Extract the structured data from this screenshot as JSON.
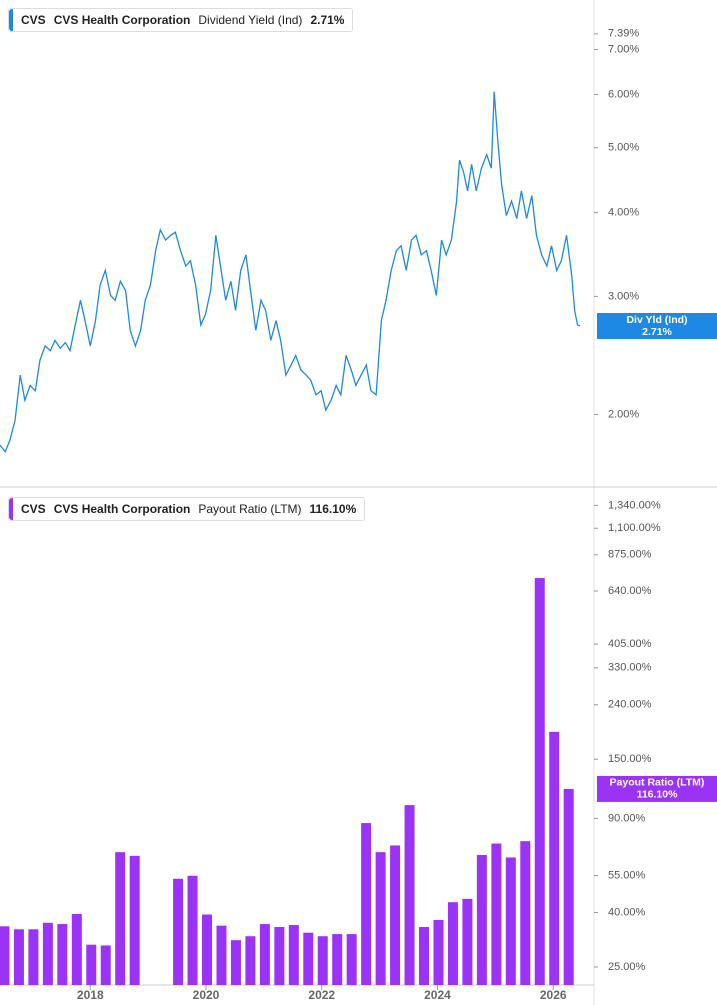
{
  "chart_data": [
    {
      "type": "line",
      "symbol": "CVS",
      "company": "CVS Health Corporation",
      "last_value_label": "2.71%",
      "badge_label": "Div Yld (Ind)",
      "yscale": "log",
      "grid": false,
      "xlim": [
        2016.44,
        2026.67
      ],
      "ylim": [
        1.57,
        8.3
      ],
      "yticks": [
        {
          "value": 2,
          "label": "2.00%"
        },
        {
          "value": 3,
          "label": "3.00%"
        },
        {
          "value": 4,
          "label": "4.00%"
        },
        {
          "value": 5,
          "label": "5.00%"
        },
        {
          "value": 6,
          "label": "6.00%"
        },
        {
          "value": 7,
          "label": "7.00%"
        },
        {
          "value": 7.39,
          "label": "7.39%"
        }
      ],
      "x": [
        2016.44,
        2016.53,
        2016.61,
        2016.7,
        2016.79,
        2016.87,
        2016.96,
        2017.05,
        2017.13,
        2017.22,
        2017.31,
        2017.39,
        2017.48,
        2017.57,
        2017.65,
        2017.74,
        2017.83,
        2017.91,
        2018.0,
        2018.09,
        2018.17,
        2018.26,
        2018.35,
        2018.43,
        2018.52,
        2018.61,
        2018.69,
        2018.78,
        2018.87,
        2018.95,
        2019.04,
        2019.13,
        2019.21,
        2019.3,
        2019.39,
        2019.47,
        2019.56,
        2019.65,
        2019.73,
        2019.82,
        2019.91,
        2019.99,
        2020.08,
        2020.17,
        2020.25,
        2020.34,
        2020.43,
        2020.51,
        2020.6,
        2020.69,
        2020.77,
        2020.86,
        2020.95,
        2021.03,
        2021.12,
        2021.21,
        2021.29,
        2021.38,
        2021.47,
        2021.55,
        2021.64,
        2021.73,
        2021.81,
        2021.9,
        2021.99,
        2022.07,
        2022.16,
        2022.25,
        2022.33,
        2022.42,
        2022.51,
        2022.59,
        2022.68,
        2022.77,
        2022.85,
        2022.94,
        2023.03,
        2023.11,
        2023.2,
        2023.29,
        2023.37,
        2023.46,
        2023.55,
        2023.63,
        2023.72,
        2023.81,
        2023.89,
        2023.98,
        2024.07,
        2024.15,
        2024.24,
        2024.33,
        2024.38,
        2024.45,
        2024.52,
        2024.59,
        2024.67,
        2024.76,
        2024.85,
        2024.93,
        2024.98,
        2025.04,
        2025.11,
        2025.19,
        2025.28,
        2025.37,
        2025.45,
        2025.54,
        2025.63,
        2025.71,
        2025.8,
        2025.89,
        2025.97,
        2026.06,
        2026.14,
        2026.23,
        2026.32,
        2026.37,
        2026.42,
        2026.46
      ],
      "series": [
        {
          "name": "Dividend Yield (Ind)",
          "color": "#1e88e5",
          "values": [
            1.8,
            1.76,
            1.83,
            1.96,
            2.29,
            2.1,
            2.21,
            2.17,
            2.41,
            2.53,
            2.49,
            2.58,
            2.51,
            2.56,
            2.49,
            2.72,
            2.96,
            2.76,
            2.53,
            2.76,
            3.12,
            3.28,
            3.01,
            2.96,
            3.16,
            3.06,
            2.67,
            2.53,
            2.67,
            2.96,
            3.12,
            3.51,
            3.77,
            3.64,
            3.7,
            3.74,
            3.51,
            3.33,
            3.39,
            3.12,
            2.72,
            2.82,
            3.06,
            3.7,
            3.33,
            2.96,
            3.16,
            2.86,
            3.28,
            3.46,
            3.06,
            2.67,
            2.96,
            2.86,
            2.58,
            2.76,
            2.58,
            2.29,
            2.37,
            2.45,
            2.33,
            2.29,
            2.25,
            2.14,
            2.17,
            2.03,
            2.1,
            2.21,
            2.14,
            2.45,
            2.33,
            2.21,
            2.29,
            2.37,
            2.17,
            2.14,
            2.76,
            2.96,
            3.28,
            3.51,
            3.57,
            3.28,
            3.64,
            3.7,
            3.46,
            3.51,
            3.28,
            3.01,
            3.64,
            3.46,
            3.64,
            4.16,
            4.79,
            4.6,
            4.31,
            4.72,
            4.31,
            4.66,
            4.88,
            4.66,
            6.06,
            5.14,
            4.39,
            3.96,
            4.16,
            3.92,
            4.31,
            3.92,
            4.24,
            3.7,
            3.46,
            3.33,
            3.57,
            3.28,
            3.39,
            3.7,
            3.22,
            2.86,
            2.72,
            2.71
          ]
        }
      ]
    },
    {
      "type": "bar",
      "symbol": "CVS",
      "company": "CVS Health Corporation",
      "last_value_label": "116.10%",
      "yscale": "log",
      "grid": false,
      "xlim": [
        2016.44,
        2026.67
      ],
      "ylim": [
        21.4,
        1530
      ],
      "xticks": [
        2018,
        2020,
        2022,
        2024,
        2026
      ],
      "yticks": [
        {
          "value": 25,
          "label": "25.00%"
        },
        {
          "value": 40,
          "label": "40.00%"
        },
        {
          "value": 55,
          "label": "55.00%"
        },
        {
          "value": 90,
          "label": "90.00%"
        },
        {
          "value": 150,
          "label": "150.00%"
        },
        {
          "value": 240,
          "label": "240.00%"
        },
        {
          "value": 330,
          "label": "330.00%"
        },
        {
          "value": 405,
          "label": "405.00%"
        },
        {
          "value": 640,
          "label": "640.00%"
        },
        {
          "value": 875,
          "label": "875.00%"
        },
        {
          "value": 1100,
          "label": "1,100.00%"
        },
        {
          "value": 1340,
          "label": "1,340.00%"
        }
      ],
      "x": [
        2016.5,
        2016.75,
        2017.0,
        2017.25,
        2017.5,
        2017.75,
        2018.0,
        2018.25,
        2018.5,
        2018.75,
        2019.0,
        2019.25,
        2019.5,
        2019.75,
        2020.0,
        2020.25,
        2020.5,
        2020.75,
        2021.0,
        2021.25,
        2021.5,
        2021.75,
        2022.0,
        2022.25,
        2022.5,
        2022.75,
        2023.0,
        2023.25,
        2023.5,
        2023.75,
        2024.0,
        2024.25,
        2024.5,
        2024.75,
        2025.0,
        2025.25,
        2025.5,
        2025.75,
        2026.0,
        2026.25
      ],
      "series": [
        {
          "name": "Payout Ratio (LTM)",
          "color": "#9b33f7",
          "values": [
            35.5,
            34.6,
            34.6,
            36.6,
            36.2,
            39.5,
            30.3,
            30.1,
            67.3,
            65.2,
            null,
            null,
            53.5,
            54.9,
            39.3,
            35.7,
            31.5,
            32.6,
            36.2,
            35.3,
            35.9,
            33.6,
            32.6,
            33.2,
            33.2,
            86.5,
            67.3,
            71.3,
            101,
            35.3,
            37.5,
            43.7,
            45.0,
            65.7,
            72.5,
            64.3,
            74,
            716,
            190,
            116.1
          ]
        }
      ]
    }
  ]
}
